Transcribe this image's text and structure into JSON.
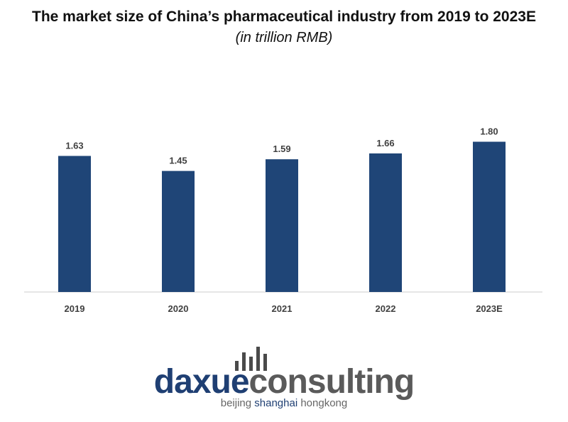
{
  "chart_data": {
    "type": "bar",
    "title": "The market size of China’s pharmaceutical industry from 2019 to 2023E",
    "subtitle": "(in trillion RMB)",
    "categories": [
      "2019",
      "2020",
      "2021",
      "2022",
      "2023E"
    ],
    "values": [
      1.63,
      1.45,
      1.59,
      1.66,
      1.8
    ],
    "value_labels": [
      "1.63",
      "1.45",
      "1.59",
      "1.66",
      "1.80"
    ],
    "ylim": [
      0,
      1.9
    ],
    "grid": false,
    "legend": "none",
    "bar_color": "#1f4577"
  },
  "logo": {
    "word_part1": "daxue",
    "word_part2": "consulting",
    "tagline_part1": "beijing ",
    "tagline_part2": "shanghai",
    "tagline_part3": " hongkong",
    "primary_color": "#1f3f73",
    "secondary_color": "#5a5a5a"
  }
}
